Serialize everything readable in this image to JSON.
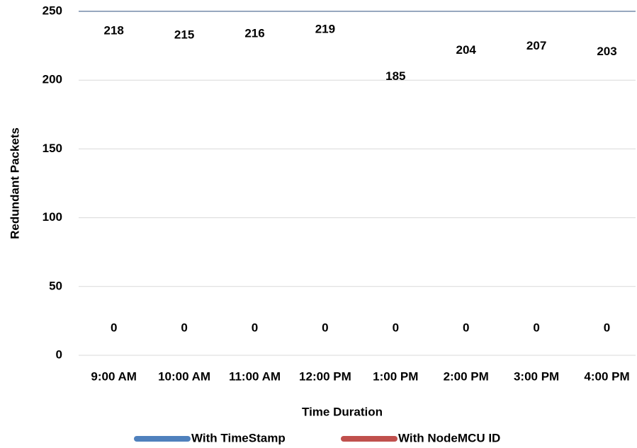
{
  "chart_data": {
    "type": "line",
    "x_label": "Time Duration",
    "y_label": "Redundant Packets",
    "categories": [
      "9:00 AM",
      "10:00 AM",
      "11:00 AM",
      "12:00 PM",
      "1:00 PM",
      "2:00 PM",
      "3:00 PM",
      "4:00 PM"
    ],
    "series": [
      {
        "name": "With TimeStamp",
        "color": "#4f81bd",
        "values": [
          218,
          215,
          216,
          219,
          185,
          204,
          207,
          203
        ]
      },
      {
        "name": "With NodeMCU ID",
        "color": "#c0504d",
        "values": [
          0,
          0,
          0,
          0,
          0,
          0,
          0,
          0
        ]
      }
    ],
    "ylim": [
      0,
      250
    ],
    "yticks": [
      0,
      50,
      100,
      150,
      200,
      250
    ],
    "grid": true,
    "legend": "bottom"
  }
}
